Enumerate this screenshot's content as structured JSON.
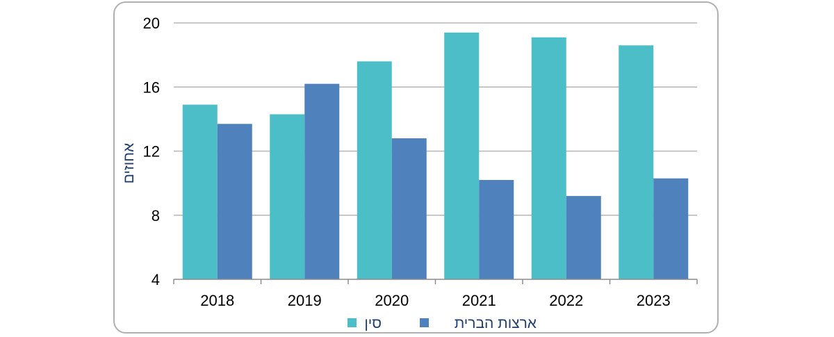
{
  "chart_data": {
    "type": "bar",
    "categories": [
      "2018",
      "2019",
      "2020",
      "2021",
      "2022",
      "2023"
    ],
    "series": [
      {
        "name": "סין",
        "color": "#4bbec7",
        "values": [
          14.9,
          14.3,
          17.6,
          19.4,
          19.1,
          18.6
        ]
      },
      {
        "name": "ארצות הברית",
        "color": "#4f81bd",
        "values": [
          13.7,
          16.2,
          12.8,
          10.2,
          9.2,
          10.3
        ]
      }
    ],
    "title": "",
    "xlabel": "",
    "ylabel": "אחוזים",
    "ylim": [
      4,
      20
    ],
    "yticks": [
      "4",
      "8",
      "12",
      "16",
      "20"
    ],
    "grid": true,
    "legend_position": "bottom"
  }
}
